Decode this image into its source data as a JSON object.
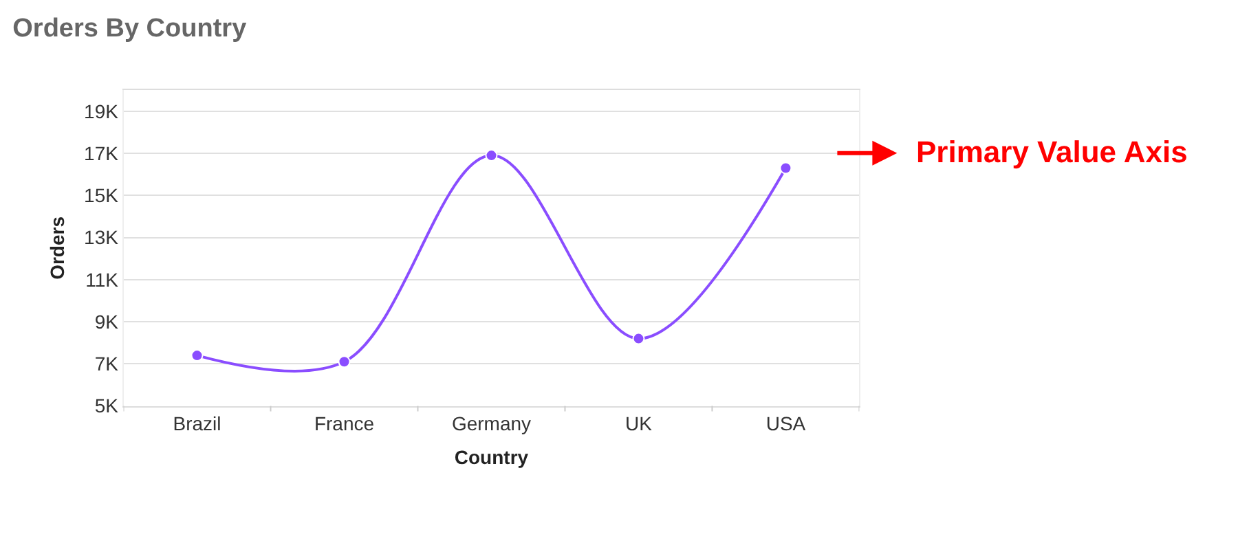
{
  "chart_data": {
    "type": "line",
    "title": "Orders By Country",
    "xlabel": "Country",
    "ylabel": "Orders",
    "categories": [
      "Brazil",
      "France",
      "Germany",
      "UK",
      "USA"
    ],
    "series": [
      {
        "color": "#8a4dff",
        "values": [
          7400,
          7100,
          16900,
          8200,
          16300
        ]
      }
    ],
    "ylim": [
      5000,
      20000
    ],
    "yticks": [
      {
        "value": 5000,
        "label": "5K"
      },
      {
        "value": 7000,
        "label": "7K"
      },
      {
        "value": 9000,
        "label": "9K"
      },
      {
        "value": 11000,
        "label": "11K"
      },
      {
        "value": 13000,
        "label": "13K"
      },
      {
        "value": 15000,
        "label": "15K"
      },
      {
        "value": 17000,
        "label": "17K"
      },
      {
        "value": 19000,
        "label": "19K"
      }
    ],
    "grid": "y",
    "marker": "circle",
    "line_style": "solid",
    "annotations": [
      "Primary Value Axis"
    ]
  }
}
